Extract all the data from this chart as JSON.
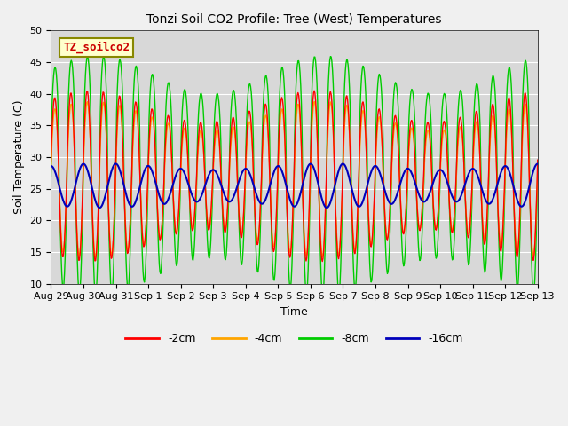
{
  "title": "Tonzi Soil CO2 Profile: Tree (West) Temperatures",
  "ylabel": "Soil Temperature (C)",
  "xlabel": "Time",
  "annotation": "TZ_soilco2",
  "ylim": [
    10,
    50
  ],
  "background_color": "#e8e8e8",
  "plot_bg": "#d8d8d8",
  "colors": {
    "-2cm": "#ff0000",
    "-4cm": "#ffa500",
    "-8cm": "#00cc00",
    "-16cm": "#0000bb"
  },
  "xtick_labels": [
    "Aug 29",
    "Aug 30",
    "Aug 31",
    "Sep 1",
    "Sep 2",
    "Sep 3",
    "Sep 4",
    "Sep 5",
    "Sep 6",
    "Sep 7",
    "Sep 8",
    "Sep 9",
    "Sep 10",
    "Sep 11",
    "Sep 12",
    "Sep 13"
  ],
  "legend_labels": [
    "-2cm",
    "-4cm",
    "-8cm",
    "-16cm"
  ],
  "num_days": 15
}
